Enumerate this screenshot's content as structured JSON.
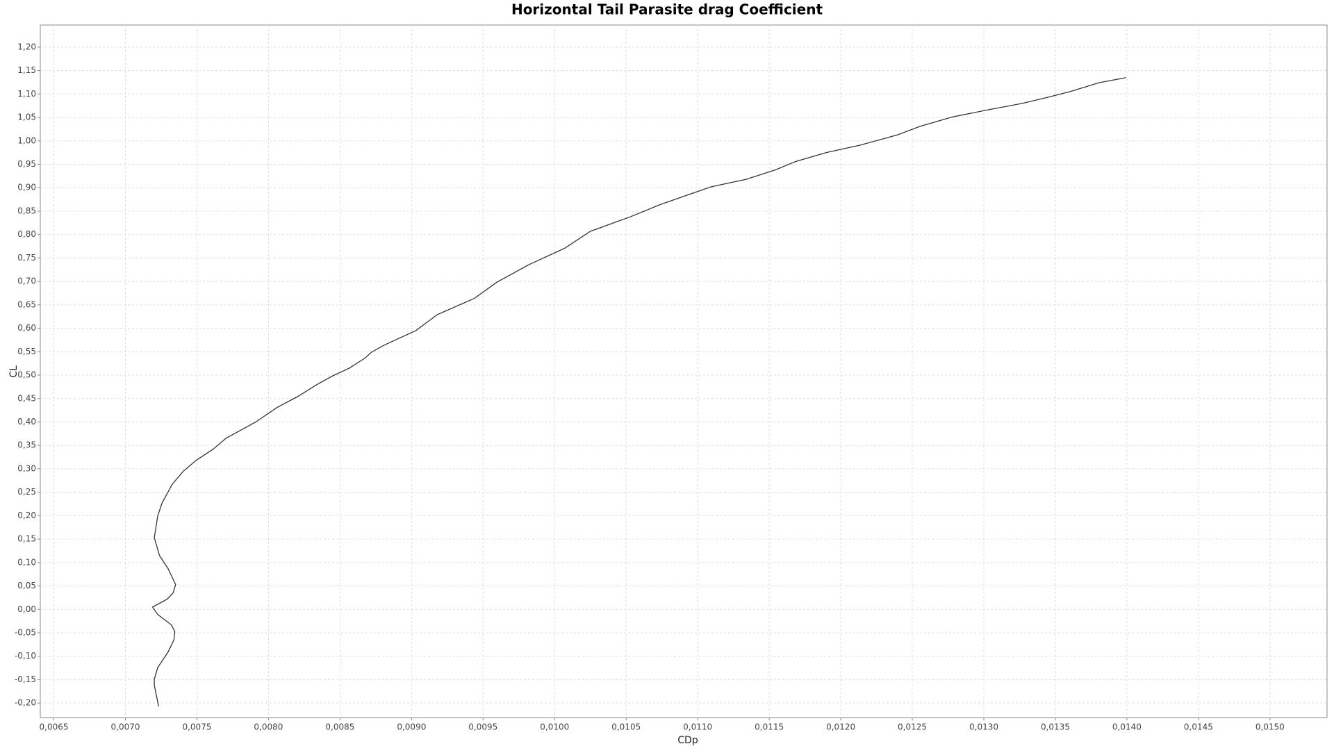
{
  "chart_data": {
    "type": "line",
    "title": "Horizontal Tail Parasite drag Coefficient",
    "x_label": "CDp",
    "y_label": "CL",
    "color": "#333333",
    "grid": true,
    "xlim": [
      0.006405,
      0.015399
    ],
    "ylim": [
      -0.2309,
      1.2473
    ],
    "xticks": [
      {
        "value": 0.0065,
        "label": "0,0065"
      },
      {
        "value": 0.007,
        "label": "0,0070"
      },
      {
        "value": 0.0075,
        "label": "0,0075"
      },
      {
        "value": 0.008,
        "label": "0,0080"
      },
      {
        "value": 0.0085,
        "label": "0,0085"
      },
      {
        "value": 0.009,
        "label": "0,0090"
      },
      {
        "value": 0.0095,
        "label": "0,0095"
      },
      {
        "value": 0.01,
        "label": "0,0100"
      },
      {
        "value": 0.0105,
        "label": "0,0105"
      },
      {
        "value": 0.011,
        "label": "0,0110"
      },
      {
        "value": 0.0115,
        "label": "0,0115"
      },
      {
        "value": 0.012,
        "label": "0,0120"
      },
      {
        "value": 0.0125,
        "label": "0,0125"
      },
      {
        "value": 0.013,
        "label": "0,0130"
      },
      {
        "value": 0.0135,
        "label": "0,0135"
      },
      {
        "value": 0.014,
        "label": "0,0140"
      },
      {
        "value": 0.0145,
        "label": "0,0145"
      },
      {
        "value": 0.015,
        "label": "0,0150"
      }
    ],
    "yticks": [
      {
        "value": -0.2,
        "label": "-0,20"
      },
      {
        "value": -0.15,
        "label": "-0,15"
      },
      {
        "value": -0.1,
        "label": "-0,10"
      },
      {
        "value": -0.05,
        "label": "-0,05"
      },
      {
        "value": 0,
        "label": "0,00"
      },
      {
        "value": 0.05,
        "label": "0,05"
      },
      {
        "value": 0.1,
        "label": "0,10"
      },
      {
        "value": 0.15,
        "label": "0,15"
      },
      {
        "value": 0.2,
        "label": "0,20"
      },
      {
        "value": 0.25,
        "label": "0,25"
      },
      {
        "value": 0.3,
        "label": "0,30"
      },
      {
        "value": 0.35,
        "label": "0,35"
      },
      {
        "value": 0.4,
        "label": "0,40"
      },
      {
        "value": 0.45,
        "label": "0,45"
      },
      {
        "value": 0.5,
        "label": "0,50"
      },
      {
        "value": 0.55,
        "label": "0,55"
      },
      {
        "value": 0.6,
        "label": "0,60"
      },
      {
        "value": 0.65,
        "label": "0,65"
      },
      {
        "value": 0.7,
        "label": "0,70"
      },
      {
        "value": 0.75,
        "label": "0,75"
      },
      {
        "value": 0.8,
        "label": "0,80"
      },
      {
        "value": 0.85,
        "label": "0,85"
      },
      {
        "value": 0.9,
        "label": "0,90"
      },
      {
        "value": 0.95,
        "label": "0,95"
      },
      {
        "value": 1,
        "label": "1,00"
      },
      {
        "value": 1.05,
        "label": "1,05"
      },
      {
        "value": 1.1,
        "label": "1,10"
      },
      {
        "value": 1.15,
        "label": "1,15"
      },
      {
        "value": 1.2,
        "label": "1,20"
      }
    ],
    "x": [
      0.007232,
      0.007202,
      0.007202,
      0.007226,
      0.007298,
      0.007339,
      0.007345,
      0.007321,
      0.007226,
      0.00719,
      0.007292,
      0.007333,
      0.007351,
      0.007298,
      0.007238,
      0.007202,
      0.007226,
      0.007256,
      0.007327,
      0.007405,
      0.007494,
      0.007613,
      0.007702,
      0.007911,
      0.00806,
      0.008208,
      0.008339,
      0.008446,
      0.008565,
      0.008673,
      0.00872,
      0.008815,
      0.00903,
      0.009179,
      0.00944,
      0.009595,
      0.009815,
      0.010071,
      0.01025,
      0.01053,
      0.010738,
      0.010887,
      0.011095,
      0.011339,
      0.011542,
      0.011685,
      0.011899,
      0.012137,
      0.012399,
      0.012554,
      0.01278,
      0.013042,
      0.013268,
      0.013446,
      0.013601,
      0.013804,
      0.013994
    ],
    "values": [
      -0.207,
      -0.162,
      -0.149,
      -0.124,
      -0.091,
      -0.065,
      -0.047,
      -0.033,
      -0.011,
      0.005,
      0.022,
      0.035,
      0.053,
      0.087,
      0.115,
      0.153,
      0.2,
      0.227,
      0.267,
      0.295,
      0.318,
      0.342,
      0.365,
      0.4,
      0.431,
      0.455,
      0.48,
      0.498,
      0.515,
      0.536,
      0.549,
      0.565,
      0.595,
      0.629,
      0.664,
      0.698,
      0.735,
      0.771,
      0.807,
      0.838,
      0.864,
      0.88,
      0.902,
      0.918,
      0.938,
      0.956,
      0.975,
      0.991,
      1.013,
      1.031,
      1.051,
      1.067,
      1.08,
      1.093,
      1.105,
      1.124,
      1.135
    ]
  }
}
